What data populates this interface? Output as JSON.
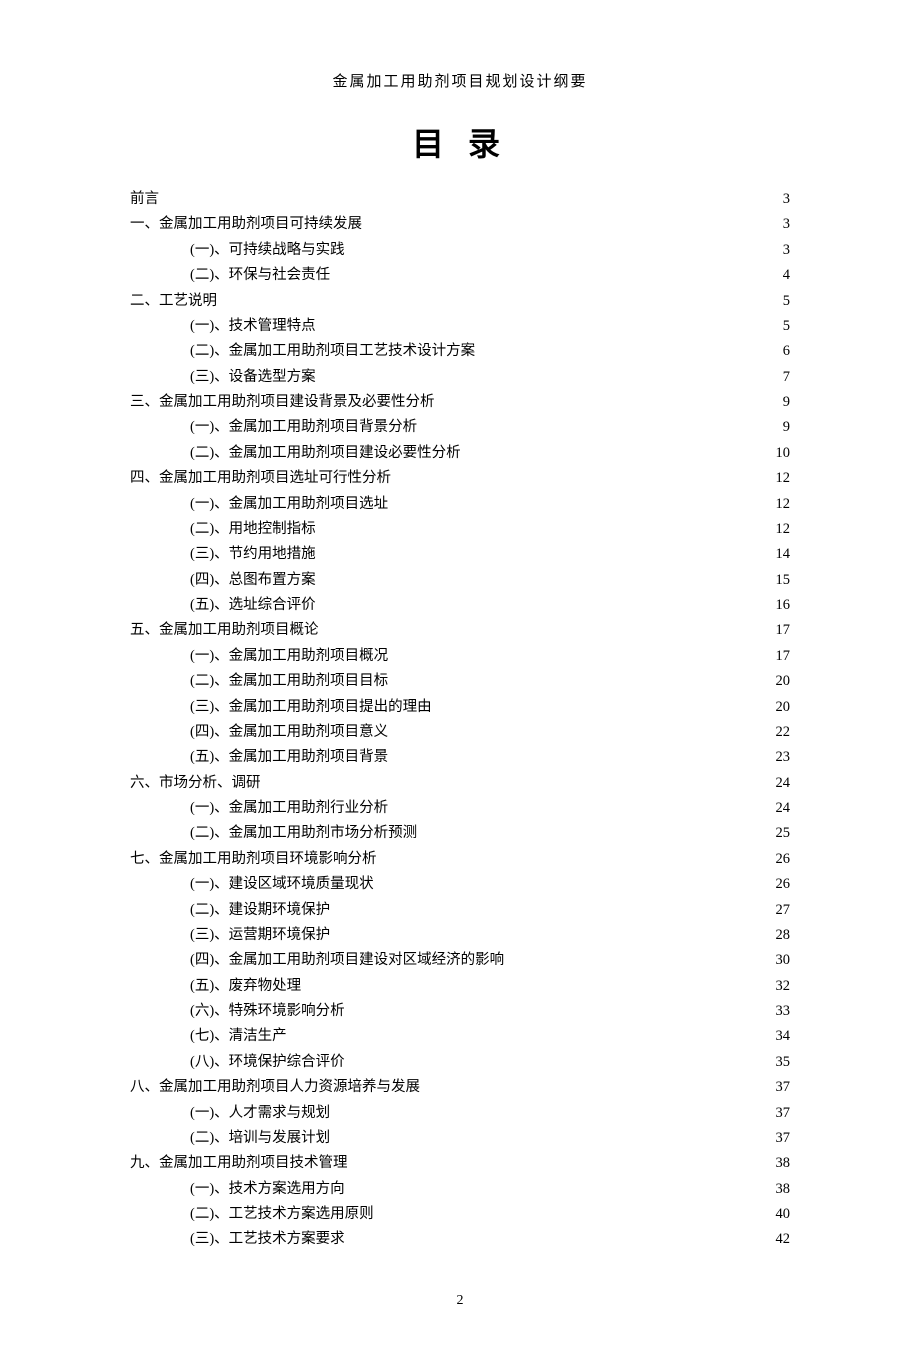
{
  "header": "金属加工用助剂项目规划设计纲要",
  "title": "目 录",
  "page_number": "2",
  "entries": [
    {
      "level": 0,
      "label": "前言",
      "page": "3"
    },
    {
      "level": 0,
      "label": "一、金属加工用助剂项目可持续发展",
      "page": "3"
    },
    {
      "level": 1,
      "label": "(一)、可持续战略与实践",
      "page": "3"
    },
    {
      "level": 1,
      "label": "(二)、环保与社会责任",
      "page": "4"
    },
    {
      "level": 0,
      "label": "二、工艺说明",
      "page": "5"
    },
    {
      "level": 1,
      "label": "(一)、技术管理特点",
      "page": "5"
    },
    {
      "level": 1,
      "label": "(二)、金属加工用助剂项目工艺技术设计方案",
      "page": "6"
    },
    {
      "level": 1,
      "label": "(三)、设备选型方案",
      "page": "7"
    },
    {
      "level": 0,
      "label": "三、金属加工用助剂项目建设背景及必要性分析",
      "page": "9"
    },
    {
      "level": 1,
      "label": "(一)、金属加工用助剂项目背景分析",
      "page": "9"
    },
    {
      "level": 1,
      "label": "(二)、金属加工用助剂项目建设必要性分析",
      "page": "10"
    },
    {
      "level": 0,
      "label": "四、金属加工用助剂项目选址可行性分析",
      "page": "12"
    },
    {
      "level": 1,
      "label": "(一)、金属加工用助剂项目选址",
      "page": "12"
    },
    {
      "level": 1,
      "label": "(二)、用地控制指标",
      "page": "12"
    },
    {
      "level": 1,
      "label": "(三)、节约用地措施",
      "page": "14"
    },
    {
      "level": 1,
      "label": "(四)、总图布置方案",
      "page": "15"
    },
    {
      "level": 1,
      "label": "(五)、选址综合评价",
      "page": "16"
    },
    {
      "level": 0,
      "label": "五、金属加工用助剂项目概论",
      "page": "17"
    },
    {
      "level": 1,
      "label": "(一)、金属加工用助剂项目概况",
      "page": "17"
    },
    {
      "level": 1,
      "label": "(二)、金属加工用助剂项目目标",
      "page": "20"
    },
    {
      "level": 1,
      "label": "(三)、金属加工用助剂项目提出的理由",
      "page": "20"
    },
    {
      "level": 1,
      "label": "(四)、金属加工用助剂项目意义",
      "page": "22"
    },
    {
      "level": 1,
      "label": "(五)、金属加工用助剂项目背景",
      "page": "23"
    },
    {
      "level": 0,
      "label": "六、市场分析、调研",
      "page": "24"
    },
    {
      "level": 1,
      "label": "(一)、金属加工用助剂行业分析",
      "page": "24"
    },
    {
      "level": 1,
      "label": "(二)、金属加工用助剂市场分析预测",
      "page": "25"
    },
    {
      "level": 0,
      "label": "七、金属加工用助剂项目环境影响分析",
      "page": "26"
    },
    {
      "level": 1,
      "label": "(一)、建设区域环境质量现状",
      "page": "26"
    },
    {
      "level": 1,
      "label": "(二)、建设期环境保护",
      "page": "27"
    },
    {
      "level": 1,
      "label": "(三)、运营期环境保护",
      "page": "28"
    },
    {
      "level": 1,
      "label": "(四)、金属加工用助剂项目建设对区域经济的影响",
      "page": "30"
    },
    {
      "level": 1,
      "label": "(五)、废弃物处理",
      "page": "32"
    },
    {
      "level": 1,
      "label": "(六)、特殊环境影响分析",
      "page": "33"
    },
    {
      "level": 1,
      "label": "(七)、清洁生产",
      "page": "34"
    },
    {
      "level": 1,
      "label": "(八)、环境保护综合评价",
      "page": "35"
    },
    {
      "level": 0,
      "label": "八、金属加工用助剂项目人力资源培养与发展",
      "page": "37"
    },
    {
      "level": 1,
      "label": "(一)、人才需求与规划",
      "page": "37"
    },
    {
      "level": 1,
      "label": "(二)、培训与发展计划",
      "page": "37"
    },
    {
      "level": 0,
      "label": "九、金属加工用助剂项目技术管理",
      "page": "38"
    },
    {
      "level": 1,
      "label": "(一)、技术方案选用方向",
      "page": "38"
    },
    {
      "level": 1,
      "label": "(二)、工艺技术方案选用原则",
      "page": "40"
    },
    {
      "level": 1,
      "label": "(三)、工艺技术方案要求",
      "page": "42"
    }
  ]
}
